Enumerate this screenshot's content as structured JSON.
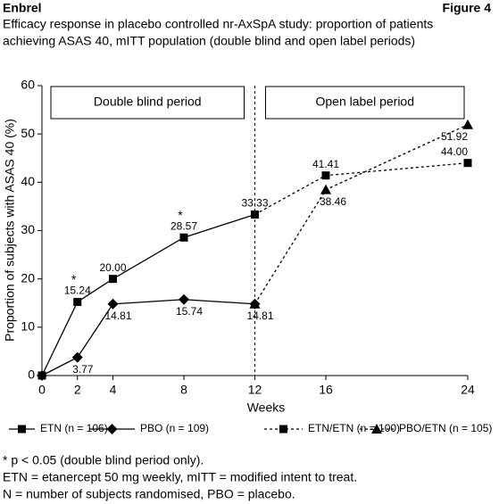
{
  "header": {
    "brand": "Enbrel",
    "figure": "Figure 4"
  },
  "chart_data": {
    "type": "line",
    "title": [
      "Efficacy response in placebo controlled nr-AxSpA study: proportion of patients",
      "achieving ASAS 40, mITT population (double blind and open label periods)"
    ],
    "x_label": "Weeks",
    "y_label": "Proportion of subjects with ASAS 40 (%)",
    "xlim": [
      0,
      24
    ],
    "xticks": [
      0,
      2,
      4,
      8,
      12,
      16,
      24
    ],
    "ylim": [
      0,
      60
    ],
    "yticks": [
      0,
      10,
      20,
      30,
      40,
      50,
      60
    ],
    "divider_x": 12,
    "periods": [
      "Double blind period",
      "Open label period"
    ],
    "annotations": [
      {
        "text": "*",
        "x": 2
      },
      {
        "text": "*",
        "x": 8
      }
    ],
    "series": [
      {
        "name": "ETN (n = 106)",
        "color": "#000000",
        "marker": "square",
        "dash": false,
        "x": [
          0,
          2,
          4,
          8,
          12
        ],
        "values": [
          0,
          15.24,
          20.0,
          28.57,
          33.33
        ],
        "value_labels": [
          null,
          "15.24",
          "20.00",
          "28.57",
          "33.33"
        ]
      },
      {
        "name": "PBO (n = 109)",
        "color": "#000000",
        "marker": "diamond",
        "dash": false,
        "x": [
          0,
          2,
          4,
          8,
          12
        ],
        "values": [
          0,
          3.77,
          14.81,
          15.74,
          14.81
        ],
        "value_labels": [
          null,
          "3.77",
          "14.81",
          "15.74",
          "14.81"
        ]
      },
      {
        "name": "ETN/ETN (n = 100)",
        "color": "#000000",
        "marker": "square",
        "dash": true,
        "x": [
          12,
          16,
          24
        ],
        "values": [
          33.33,
          41.41,
          44.0
        ],
        "value_labels": [
          null,
          "41.41",
          "44.00"
        ]
      },
      {
        "name": "PBO/ETN (n = 105)",
        "color": "#000000",
        "marker": "triangle",
        "dash": true,
        "x": [
          12,
          16,
          24
        ],
        "values": [
          14.81,
          38.46,
          51.92
        ],
        "value_labels": [
          null,
          "38.46",
          "51.92"
        ]
      }
    ]
  },
  "footnotes": [
    "* p < 0.05 (double blind period only).",
    "ETN = etanercept 50 mg weekly, mITT = modified intent to treat.",
    "N = number of subjects randomised, PBO = placebo."
  ]
}
